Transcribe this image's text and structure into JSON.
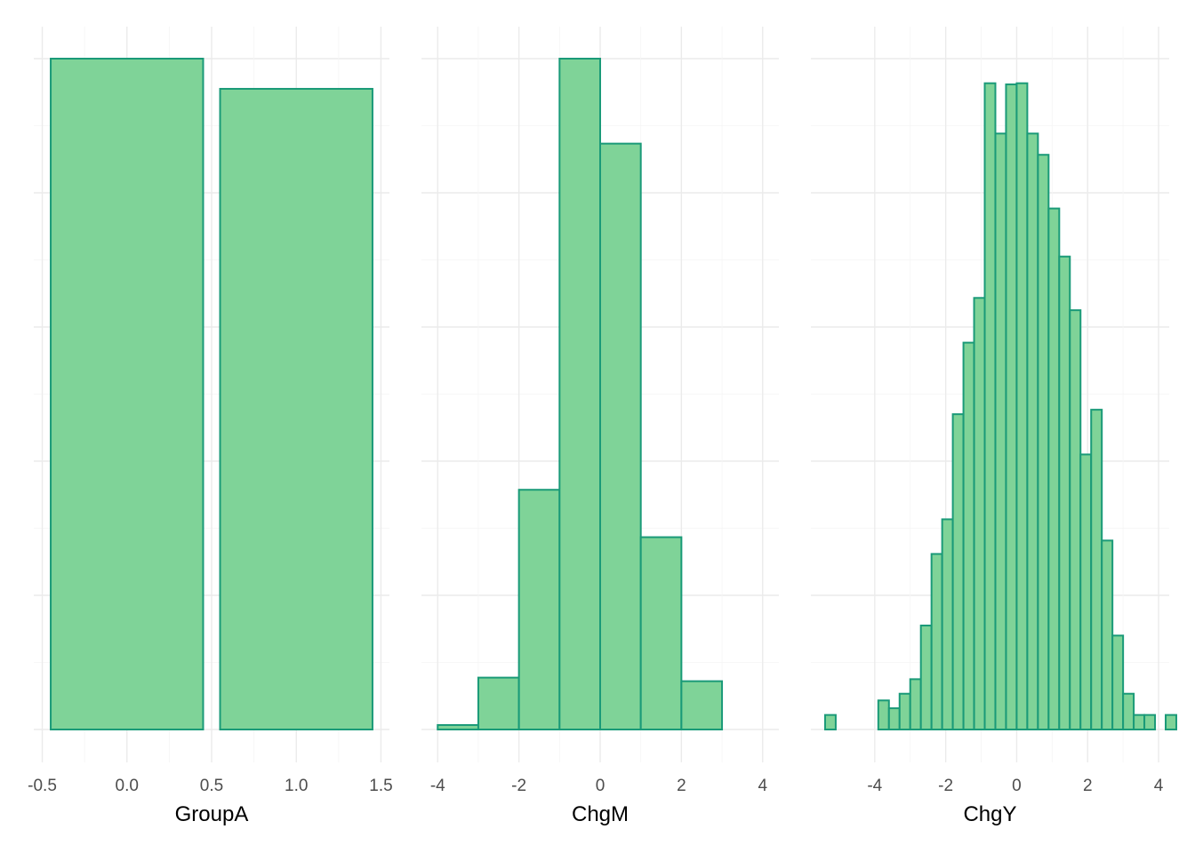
{
  "style": {
    "fill": "#7fd398",
    "stroke": "#1a9a78",
    "grid_major": "#ebebeb",
    "grid_minor": "#f5f5f5",
    "text": "#4d4d4d"
  },
  "chart_data": [
    {
      "type": "bar",
      "xlabel": "GroupA",
      "x_ticks": [
        -0.5,
        0.0,
        0.5,
        1.0,
        1.5
      ],
      "x_tick_labels": [
        "-0.5",
        "0.0",
        "0.5",
        "1.0",
        "1.5"
      ],
      "xlim": [
        -0.55,
        1.55
      ],
      "ylim": [
        0,
        1.0
      ],
      "y_ticks_shown": false,
      "bars": [
        {
          "x": 0,
          "width": 0.9,
          "value": 1.0
        },
        {
          "x": 1,
          "width": 0.9,
          "value": 0.955
        }
      ]
    },
    {
      "type": "bar",
      "xlabel": "ChgM",
      "x_ticks": [
        -4,
        -2,
        0,
        2,
        4
      ],
      "x_tick_labels": [
        "-4",
        "-2",
        "0",
        "2",
        "4"
      ],
      "xlim": [
        -4.4,
        4.4
      ],
      "ylim": [
        0,
        7.5
      ],
      "y_ticks_shown": false,
      "bins": [
        {
          "x0": -4,
          "x1": -3,
          "count": 0.05
        },
        {
          "x0": -3,
          "x1": -2,
          "count": 0.58
        },
        {
          "x0": -2,
          "x1": -1,
          "count": 2.68
        },
        {
          "x0": -1,
          "x1": 0,
          "count": 7.5
        },
        {
          "x0": 0,
          "x1": 1,
          "count": 6.55
        },
        {
          "x0": 1,
          "x1": 2,
          "count": 2.15
        },
        {
          "x0": 2,
          "x1": 3,
          "count": 0.54
        },
        {
          "x0": 3,
          "x1": 4,
          "count": 0
        }
      ]
    },
    {
      "type": "bar",
      "xlabel": "ChgY",
      "x_ticks": [
        -4,
        -2,
        0,
        2,
        4
      ],
      "x_tick_labels": [
        "-4",
        "-2",
        "0",
        "2",
        "4"
      ],
      "xlim": [
        -5.8,
        4.3
      ],
      "ylim": [
        0,
        60
      ],
      "y_ticks_shown": false,
      "bin_width": 0.3,
      "bin_start": -5.4,
      "counts": [
        1.3,
        0,
        0,
        0,
        0,
        2.6,
        1.9,
        3.2,
        4.5,
        9.3,
        15.7,
        18.8,
        28.2,
        34.6,
        38.6,
        57.8,
        53.3,
        57.7,
        57.8,
        53.3,
        51.4,
        46.6,
        42.3,
        37.5,
        24.6,
        28.6,
        16.9,
        8.4,
        3.2,
        1.3,
        1.3,
        0,
        1.3
      ]
    }
  ]
}
